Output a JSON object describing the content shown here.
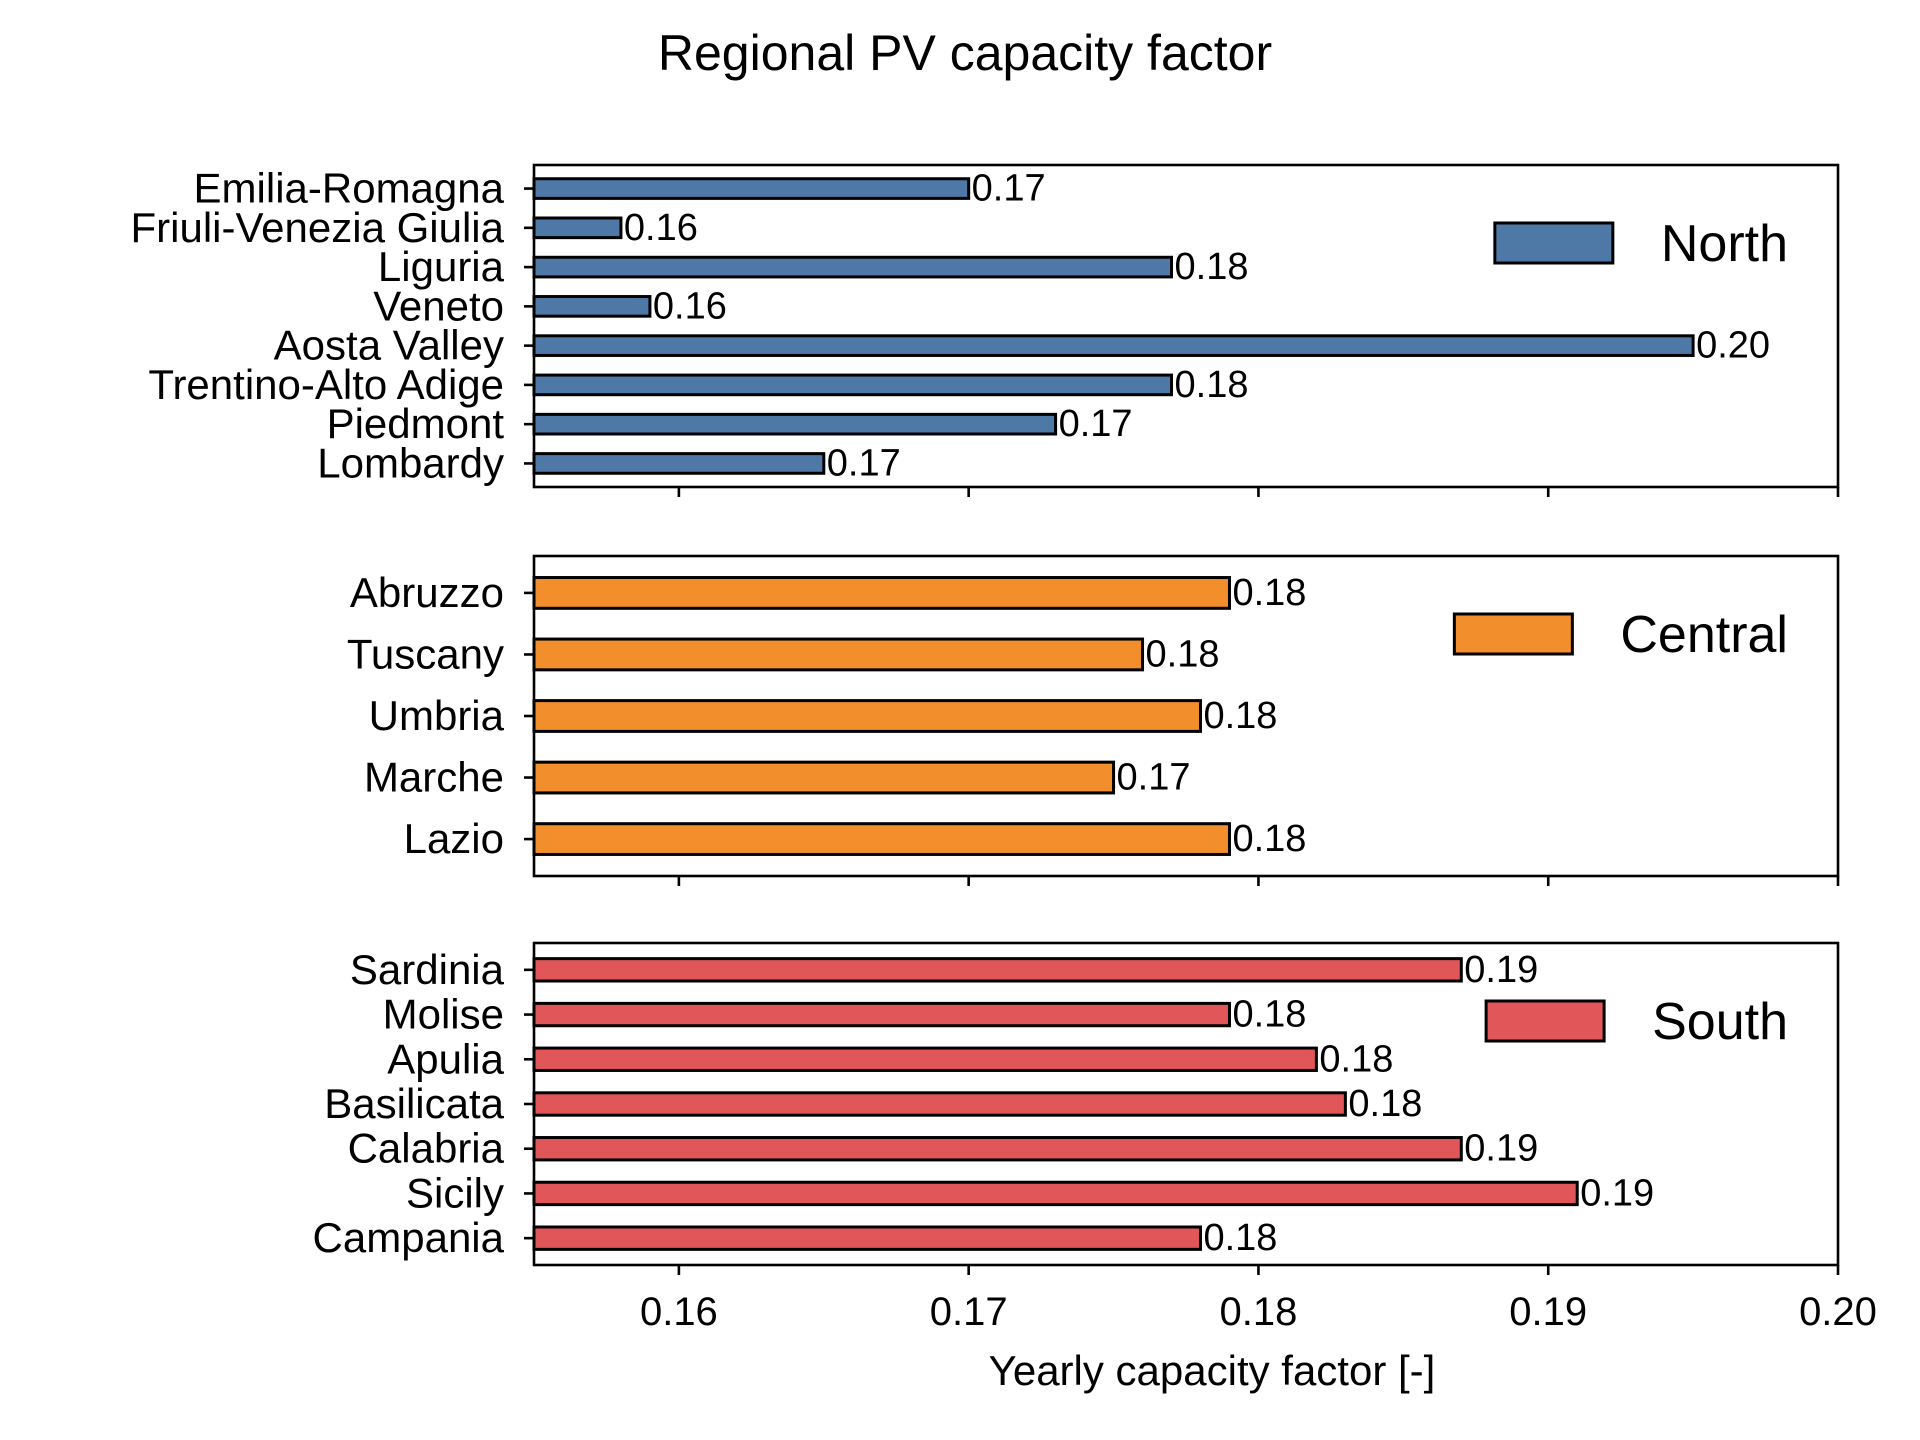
{
  "chart_data": {
    "type": "bar",
    "orientation": "horizontal",
    "title": "Regional PV capacity factor",
    "xlabel": "Yearly capacity factor [-]",
    "xlim": [
      0.155,
      0.2
    ],
    "xticks": [
      0.16,
      0.17,
      0.18,
      0.19,
      0.2
    ],
    "xtick_labels": [
      "0.16",
      "0.17",
      "0.18",
      "0.19",
      "0.20"
    ],
    "grid": false,
    "legend_position": "upper right of each panel",
    "panels": [
      {
        "name": "North",
        "color": "#4e79a7",
        "categories": [
          "Emilia-Romagna",
          "Friuli-Venezia Giulia",
          "Liguria",
          "Veneto",
          "Aosta Valley",
          "Trentino-Alto Adige",
          "Piedmont",
          "Lombardy"
        ],
        "values": [
          0.17,
          0.158,
          0.177,
          0.159,
          0.195,
          0.177,
          0.173,
          0.165
        ],
        "labels": [
          "0.17",
          "0.16",
          "0.18",
          "0.16",
          "0.20",
          "0.18",
          "0.17",
          "0.17"
        ]
      },
      {
        "name": "Central",
        "color": "#f28e2b",
        "categories": [
          "Abruzzo",
          "Tuscany",
          "Umbria",
          "Marche",
          "Lazio"
        ],
        "values": [
          0.179,
          0.176,
          0.178,
          0.175,
          0.179
        ],
        "labels": [
          "0.18",
          "0.18",
          "0.18",
          "0.17",
          "0.18"
        ]
      },
      {
        "name": "South",
        "color": "#e15759",
        "categories": [
          "Sardinia",
          "Molise",
          "Apulia",
          "Basilicata",
          "Calabria",
          "Sicily",
          "Campania"
        ],
        "values": [
          0.187,
          0.179,
          0.182,
          0.183,
          0.187,
          0.191,
          0.178
        ],
        "labels": [
          "0.19",
          "0.18",
          "0.18",
          "0.18",
          "0.19",
          "0.19",
          "0.18"
        ]
      }
    ]
  }
}
